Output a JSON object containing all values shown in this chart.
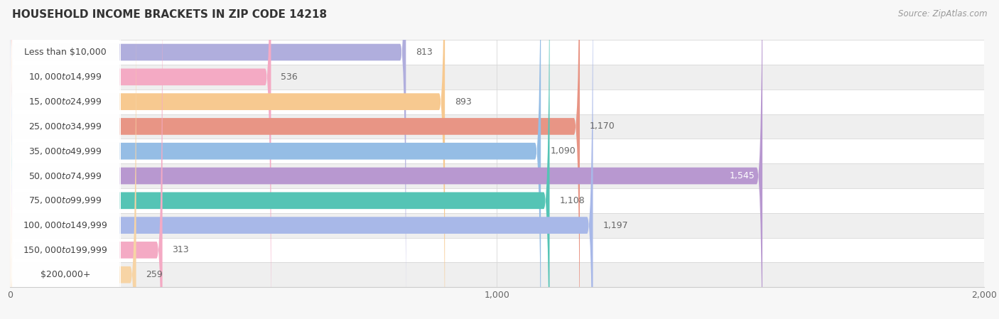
{
  "title": "HOUSEHOLD INCOME BRACKETS IN ZIP CODE 14218",
  "source": "Source: ZipAtlas.com",
  "categories": [
    "Less than $10,000",
    "$10,000 to $14,999",
    "$15,000 to $24,999",
    "$25,000 to $34,999",
    "$35,000 to $49,999",
    "$50,000 to $74,999",
    "$75,000 to $99,999",
    "$100,000 to $149,999",
    "$150,000 to $199,999",
    "$200,000+"
  ],
  "values": [
    813,
    536,
    893,
    1170,
    1090,
    1545,
    1108,
    1197,
    313,
    259
  ],
  "bar_colors": [
    "#b0aedd",
    "#f4aac4",
    "#f7c990",
    "#e89585",
    "#95bde5",
    "#b898d0",
    "#55c4b5",
    "#a8b8e8",
    "#f4aac4",
    "#f7d4a5"
  ],
  "xlim": [
    0,
    2000
  ],
  "xticks": [
    0,
    1000,
    2000
  ],
  "xticklabels": [
    "0",
    "1,000",
    "2,000"
  ],
  "bar_height": 0.68,
  "label_inside_color": "#ffffff",
  "label_outside_color": "#666666",
  "inside_threshold": 1500,
  "background_color": "#f7f7f7",
  "row_bg_even": "#ffffff",
  "row_bg_odd": "#efefef",
  "title_fontsize": 11,
  "source_fontsize": 8.5,
  "value_fontsize": 9,
  "tick_fontsize": 9,
  "category_fontsize": 9
}
